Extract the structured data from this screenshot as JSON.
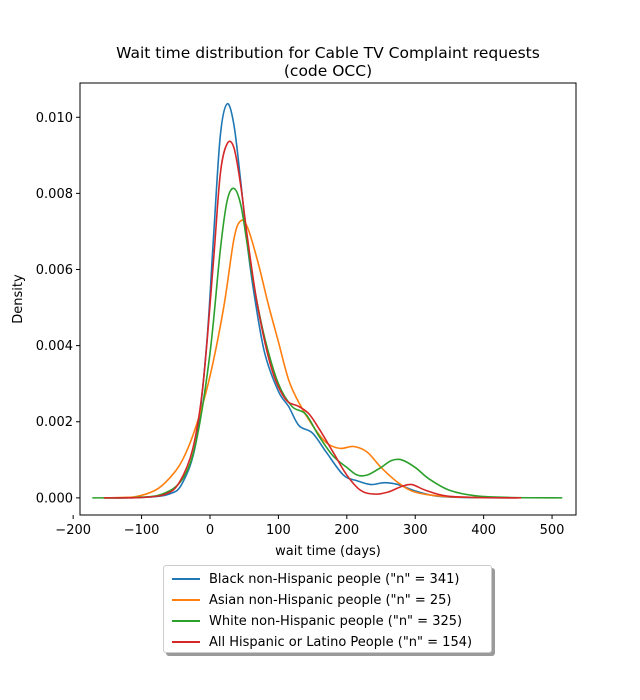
{
  "chart_data": {
    "type": "line",
    "title_line1": "Wait time distribution  for Cable TV Complaint requests",
    "title_line2": "(code OCC)",
    "xlabel": "wait time (days)",
    "ylabel": "Density",
    "xlim": [
      -190,
      535
    ],
    "ylim": [
      -0.00045,
      0.0109
    ],
    "xticks": [
      -200,
      -100,
      0,
      100,
      200,
      300,
      400,
      500
    ],
    "xtick_labels": [
      "−200",
      "−100",
      "0",
      "100",
      "200",
      "300",
      "400",
      "500"
    ],
    "yticks": [
      0,
      0.002,
      0.004,
      0.006,
      0.008,
      0.01
    ],
    "ytick_labels": [
      "0.000",
      "0.002",
      "0.004",
      "0.006",
      "0.008",
      "0.010"
    ],
    "grid": false,
    "legend_position": "below",
    "series": [
      {
        "name": "Black non-Hispanic people (\"n\" = 341)",
        "color": "#1f77b4",
        "points": [
          [
            -155,
            0
          ],
          [
            -100,
            1e-05
          ],
          [
            -60,
            0.0001
          ],
          [
            -40,
            0.0004
          ],
          [
            -20,
            0.0015
          ],
          [
            -5,
            0.004
          ],
          [
            5,
            0.0068
          ],
          [
            15,
            0.0095
          ],
          [
            25,
            0.01035
          ],
          [
            35,
            0.0098
          ],
          [
            45,
            0.0083
          ],
          [
            55,
            0.0066
          ],
          [
            65,
            0.0053
          ],
          [
            80,
            0.0038
          ],
          [
            100,
            0.0028
          ],
          [
            115,
            0.0024
          ],
          [
            130,
            0.0019
          ],
          [
            150,
            0.0017
          ],
          [
            170,
            0.0012
          ],
          [
            195,
            0.0006
          ],
          [
            215,
            0.00045
          ],
          [
            235,
            0.00035
          ],
          [
            255,
            0.0004
          ],
          [
            275,
            0.00035
          ],
          [
            300,
            0.00018
          ],
          [
            330,
            5e-05
          ],
          [
            370,
            1e-05
          ],
          [
            450,
            0
          ]
        ]
      },
      {
        "name": "Asian non-Hispanic people (\"n\" = 25)",
        "color": "#ff7f0e",
        "points": [
          [
            -155,
            0
          ],
          [
            -110,
            3e-05
          ],
          [
            -80,
            0.0002
          ],
          [
            -60,
            0.0005
          ],
          [
            -40,
            0.001
          ],
          [
            -20,
            0.0019
          ],
          [
            0,
            0.0032
          ],
          [
            20,
            0.005
          ],
          [
            35,
            0.0068
          ],
          [
            45,
            0.00728
          ],
          [
            55,
            0.0071
          ],
          [
            70,
            0.0062
          ],
          [
            85,
            0.0051
          ],
          [
            100,
            0.0041
          ],
          [
            115,
            0.0031
          ],
          [
            130,
            0.0025
          ],
          [
            150,
            0.0019
          ],
          [
            170,
            0.00145
          ],
          [
            190,
            0.0013
          ],
          [
            210,
            0.00135
          ],
          [
            230,
            0.0012
          ],
          [
            250,
            0.0008
          ],
          [
            275,
            0.0004
          ],
          [
            300,
            0.00015
          ],
          [
            340,
            4e-05
          ],
          [
            390,
            1e-05
          ],
          [
            450,
            0
          ]
        ]
      },
      {
        "name": "White non-Hispanic people (\"n\" = 325)",
        "color": "#2ca02c",
        "points": [
          [
            -172,
            0
          ],
          [
            -110,
            1e-05
          ],
          [
            -70,
            0.0001
          ],
          [
            -40,
            0.0005
          ],
          [
            -20,
            0.0015
          ],
          [
            0,
            0.0038
          ],
          [
            15,
            0.0065
          ],
          [
            25,
            0.0078
          ],
          [
            35,
            0.00813
          ],
          [
            45,
            0.0077
          ],
          [
            55,
            0.0066
          ],
          [
            65,
            0.0055
          ],
          [
            80,
            0.0042
          ],
          [
            100,
            0.003
          ],
          [
            120,
            0.0024
          ],
          [
            140,
            0.0022
          ],
          [
            160,
            0.0016
          ],
          [
            180,
            0.0011
          ],
          [
            200,
            0.0008
          ],
          [
            215,
            0.0006
          ],
          [
            230,
            0.0006
          ],
          [
            250,
            0.0008
          ],
          [
            265,
            0.00098
          ],
          [
            280,
            0.001
          ],
          [
            300,
            0.0008
          ],
          [
            320,
            0.0005
          ],
          [
            350,
            0.0002
          ],
          [
            390,
            5e-05
          ],
          [
            440,
            1e-05
          ],
          [
            515,
            0
          ]
        ]
      },
      {
        "name": "All Hispanic or Latino People (\"n\" = 154)",
        "color": "#d62728",
        "points": [
          [
            -155,
            0
          ],
          [
            -100,
            1e-05
          ],
          [
            -65,
            0.0001
          ],
          [
            -45,
            0.0004
          ],
          [
            -25,
            0.0013
          ],
          [
            -10,
            0.003
          ],
          [
            5,
            0.0062
          ],
          [
            15,
            0.0085
          ],
          [
            25,
            0.0093
          ],
          [
            35,
            0.0092
          ],
          [
            45,
            0.0082
          ],
          [
            55,
            0.0068
          ],
          [
            70,
            0.005
          ],
          [
            90,
            0.0034
          ],
          [
            110,
            0.0026
          ],
          [
            130,
            0.0024
          ],
          [
            145,
            0.0022
          ],
          [
            160,
            0.0018
          ],
          [
            180,
            0.0012
          ],
          [
            200,
            0.0006
          ],
          [
            220,
            0.0002
          ],
          [
            240,
            0.0001
          ],
          [
            260,
            0.00015
          ],
          [
            280,
            0.0003
          ],
          [
            295,
            0.00035
          ],
          [
            315,
            0.0002
          ],
          [
            345,
            5e-05
          ],
          [
            390,
            1e-05
          ],
          [
            455,
            0
          ]
        ]
      }
    ]
  }
}
